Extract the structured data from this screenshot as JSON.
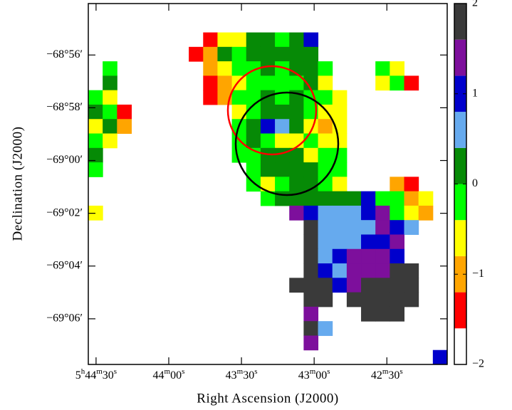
{
  "chart_data": {
    "type": "heatmap",
    "xlabel": "Right Ascension (J2000)",
    "ylabel": "Declination (J2000)",
    "xlim": [
      2673.2,
      2525.1
    ],
    "xticks": [
      {
        "value": 2670,
        "label": "5h44m30s"
      },
      {
        "value": 2640,
        "label": "44m00s"
      },
      {
        "value": 2610,
        "label": "43m30s"
      },
      {
        "value": 2580,
        "label": "43m00s"
      },
      {
        "value": 2550,
        "label": "42m30s"
      }
    ],
    "ylim": [
      -4147.73,
      -4134.05
    ],
    "yticks": [
      {
        "value": -4136,
        "label": "−68°56′"
      },
      {
        "value": -4138,
        "label": "−68°58′"
      },
      {
        "value": -4140,
        "label": "−69°00′"
      },
      {
        "value": -4142,
        "label": "−69°02′"
      },
      {
        "value": -4144,
        "label": "−69°04′"
      },
      {
        "value": -4146,
        "label": "−69°06′"
      }
    ],
    "colorbar": {
      "lim": [
        -2,
        2
      ],
      "ticks": [
        {
          "value": -2,
          "label": "−2"
        },
        {
          "value": -1,
          "label": "−1"
        },
        0,
        1,
        2
      ],
      "colors": [
        "#ffffff",
        "#ff0000",
        "#ffa500",
        "#ffff00",
        "#00ff00",
        "#068a06",
        "#66aaee",
        "#0000cc",
        "#7d0f9c",
        "#3a3a3a"
      ]
    },
    "z": [
      [
        null,
        null,
        null,
        null,
        null,
        null,
        null,
        null,
        null,
        null,
        null,
        null,
        null,
        null,
        null,
        null,
        null,
        null,
        null,
        null,
        null,
        null,
        null,
        null,
        null
      ],
      [
        null,
        null,
        null,
        null,
        null,
        null,
        null,
        null,
        null,
        null,
        null,
        null,
        null,
        null,
        null,
        null,
        null,
        null,
        null,
        null,
        null,
        null,
        null,
        null,
        null
      ],
      [
        null,
        null,
        null,
        null,
        null,
        null,
        null,
        null,
        -1.4,
        -0.6,
        -0.6,
        0.2,
        0.2,
        -0.2,
        0.2,
        1.0,
        null,
        null,
        null,
        null,
        null,
        null,
        null,
        null,
        null
      ],
      [
        null,
        null,
        null,
        null,
        null,
        null,
        null,
        -1.4,
        -1.0,
        0.2,
        -0.2,
        0.2,
        0.2,
        0.2,
        0.2,
        0.2,
        null,
        null,
        null,
        null,
        null,
        null,
        null,
        null,
        null
      ],
      [
        null,
        -0.2,
        null,
        null,
        null,
        null,
        null,
        null,
        -1.0,
        -0.6,
        -0.2,
        -0.2,
        0.2,
        -0.2,
        0.2,
        0.2,
        -0.2,
        null,
        null,
        null,
        -0.2,
        -0.6,
        null,
        null,
        null
      ],
      [
        null,
        0.2,
        null,
        null,
        null,
        null,
        null,
        null,
        -1.4,
        -1.0,
        -0.6,
        -0.2,
        -0.2,
        -0.2,
        -0.2,
        0.2,
        -0.6,
        null,
        null,
        null,
        -0.6,
        -0.2,
        -1.4,
        null,
        null
      ],
      [
        -0.2,
        -0.6,
        null,
        null,
        null,
        null,
        null,
        null,
        -1.4,
        -1.0,
        -0.2,
        -0.2,
        0.2,
        -0.2,
        0.2,
        -0.2,
        -0.2,
        -0.6,
        null,
        null,
        null,
        null,
        null,
        null,
        null
      ],
      [
        0.2,
        -0.2,
        -1.4,
        null,
        null,
        null,
        null,
        null,
        null,
        null,
        -0.6,
        -0.2,
        0.2,
        0.2,
        0.2,
        -0.2,
        -0.6,
        -0.6,
        null,
        null,
        null,
        null,
        null,
        null,
        null
      ],
      [
        -0.6,
        0.2,
        -1.0,
        null,
        null,
        null,
        null,
        null,
        null,
        null,
        -0.2,
        0.2,
        1.0,
        0.6,
        0.2,
        -0.6,
        -1.0,
        -0.6,
        null,
        null,
        null,
        null,
        null,
        null,
        null
      ],
      [
        -0.2,
        -0.6,
        null,
        null,
        null,
        null,
        null,
        null,
        null,
        null,
        -0.2,
        0.2,
        -0.2,
        -0.6,
        -0.6,
        -0.2,
        -0.6,
        -0.6,
        null,
        null,
        null,
        null,
        null,
        null,
        null
      ],
      [
        0.2,
        null,
        null,
        null,
        null,
        null,
        null,
        null,
        null,
        null,
        -0.2,
        -0.2,
        0.2,
        0.2,
        0.2,
        -0.6,
        -0.2,
        -0.2,
        null,
        null,
        null,
        null,
        null,
        null,
        null
      ],
      [
        -0.2,
        null,
        null,
        null,
        null,
        null,
        null,
        null,
        null,
        null,
        null,
        -0.2,
        0.2,
        0.2,
        0.2,
        0.2,
        -0.2,
        -0.2,
        null,
        null,
        null,
        null,
        null,
        null,
        null
      ],
      [
        null,
        null,
        null,
        null,
        null,
        null,
        null,
        null,
        null,
        null,
        null,
        -0.2,
        -0.6,
        -0.2,
        0.2,
        0.2,
        -0.2,
        -0.6,
        null,
        null,
        null,
        -1.0,
        -1.4,
        null,
        null
      ],
      [
        null,
        null,
        null,
        null,
        null,
        null,
        null,
        null,
        null,
        null,
        null,
        null,
        -0.2,
        0.2,
        0.2,
        0.2,
        0.2,
        0.2,
        0.2,
        1.0,
        -0.2,
        -0.2,
        -1.0,
        -0.6,
        null
      ],
      [
        -0.6,
        null,
        null,
        null,
        null,
        null,
        null,
        null,
        null,
        null,
        null,
        null,
        null,
        null,
        1.4,
        1.0,
        0.6,
        0.6,
        0.6,
        1.0,
        1.4,
        -0.2,
        -0.6,
        -1.0,
        null
      ],
      [
        null,
        null,
        null,
        null,
        null,
        null,
        null,
        null,
        null,
        null,
        null,
        null,
        null,
        null,
        null,
        1.8,
        0.6,
        0.6,
        0.6,
        0.6,
        1.4,
        1.0,
        0.6,
        null,
        null
      ],
      [
        null,
        null,
        null,
        null,
        null,
        null,
        null,
        null,
        null,
        null,
        null,
        null,
        null,
        null,
        null,
        1.8,
        0.6,
        0.6,
        0.6,
        1.0,
        1.0,
        1.4,
        null,
        null,
        null
      ],
      [
        null,
        null,
        null,
        null,
        null,
        null,
        null,
        null,
        null,
        null,
        null,
        null,
        null,
        null,
        null,
        1.8,
        0.6,
        1.0,
        1.4,
        1.4,
        1.4,
        1.0,
        null,
        null,
        null
      ],
      [
        null,
        null,
        null,
        null,
        null,
        null,
        null,
        null,
        null,
        null,
        null,
        null,
        null,
        null,
        null,
        1.8,
        1.0,
        0.6,
        1.4,
        1.4,
        1.4,
        1.8,
        1.8,
        null,
        null
      ],
      [
        null,
        null,
        null,
        null,
        null,
        null,
        null,
        null,
        null,
        null,
        null,
        null,
        null,
        null,
        1.8,
        1.8,
        1.8,
        1.0,
        1.4,
        1.8,
        1.8,
        1.8,
        1.8,
        null,
        null
      ],
      [
        null,
        null,
        null,
        null,
        null,
        null,
        null,
        null,
        null,
        null,
        null,
        null,
        null,
        null,
        null,
        1.8,
        1.8,
        null,
        1.8,
        1.8,
        1.8,
        1.8,
        1.8,
        null,
        null
      ],
      [
        null,
        null,
        null,
        null,
        null,
        null,
        null,
        null,
        null,
        null,
        null,
        null,
        null,
        null,
        null,
        1.4,
        null,
        null,
        null,
        1.8,
        1.8,
        1.8,
        null,
        null,
        null
      ],
      [
        null,
        null,
        null,
        null,
        null,
        null,
        null,
        null,
        null,
        null,
        null,
        null,
        null,
        null,
        null,
        1.8,
        0.6,
        null,
        null,
        null,
        null,
        null,
        null,
        null,
        null
      ],
      [
        null,
        null,
        null,
        null,
        null,
        null,
        null,
        null,
        null,
        null,
        null,
        null,
        null,
        null,
        null,
        1.4,
        null,
        null,
        null,
        null,
        null,
        null,
        null,
        null,
        null
      ],
      [
        null,
        null,
        null,
        null,
        null,
        null,
        null,
        null,
        null,
        null,
        null,
        null,
        null,
        null,
        null,
        null,
        null,
        null,
        null,
        null,
        null,
        null,
        null,
        null,
        1.0
      ]
    ]
  }
}
